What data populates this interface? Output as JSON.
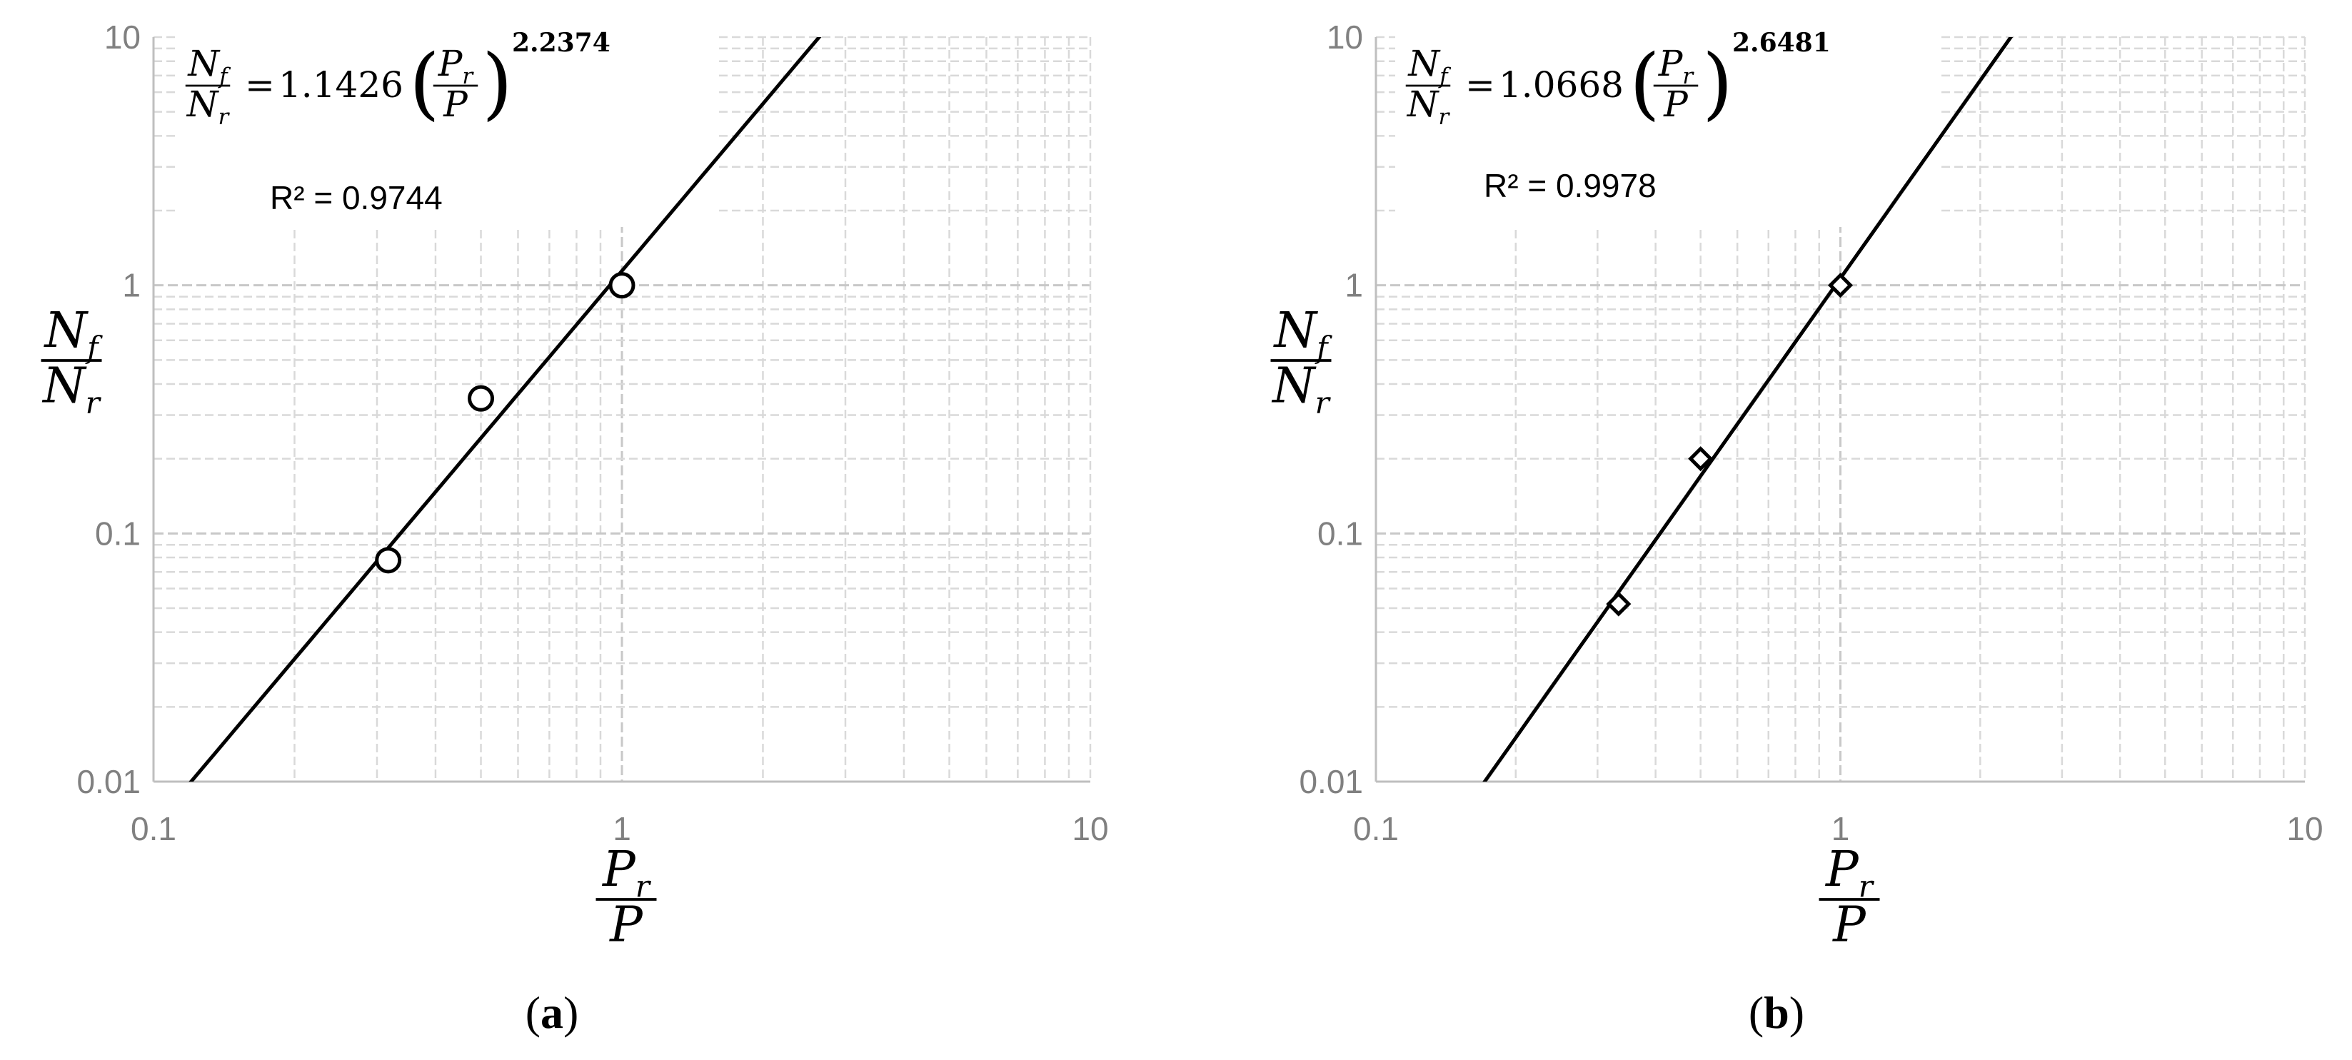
{
  "chart_data": [
    {
      "type": "scatter",
      "panel_caption": "a",
      "xscale": "log",
      "yscale": "log",
      "xlim": [
        0.1,
        10
      ],
      "ylim": [
        0.01,
        10
      ],
      "x_ticks": [
        "0.1",
        "1",
        "10"
      ],
      "y_ticks": [
        "0.01",
        "0.1",
        "1",
        "10"
      ],
      "xlabel": {
        "num": "P",
        "num_sub": "r",
        "den": "P"
      },
      "ylabel": {
        "num": "N",
        "num_sub": "f",
        "den": "N",
        "den_sub": "r"
      },
      "grid": true,
      "marker": "circle",
      "series": [
        {
          "x": [
            0.317,
            0.5,
            1.0
          ],
          "y": [
            0.078,
            0.35,
            1.0
          ]
        }
      ],
      "fit": {
        "coefficient": 1.1426,
        "exponent": 2.2374,
        "coefficient_label": "1.1426",
        "exponent_label": "2.2374"
      },
      "r_squared": "R² = 0.9744"
    },
    {
      "type": "scatter",
      "panel_caption": "b",
      "xscale": "log",
      "yscale": "log",
      "xlim": [
        0.1,
        10
      ],
      "ylim": [
        0.01,
        10
      ],
      "x_ticks": [
        "0.1",
        "1",
        "10"
      ],
      "y_ticks": [
        "0.01",
        "0.1",
        "1",
        "10"
      ],
      "xlabel": {
        "num": "P",
        "num_sub": "r",
        "den": "P"
      },
      "ylabel": {
        "num": "N",
        "num_sub": "f",
        "den": "N",
        "den_sub": "r"
      },
      "grid": true,
      "marker": "diamond",
      "series": [
        {
          "x": [
            0.333,
            0.5,
            1.0
          ],
          "y": [
            0.052,
            0.2,
            1.0
          ]
        }
      ],
      "fit": {
        "coefficient": 1.0668,
        "exponent": 2.6481,
        "coefficient_label": "1.0668",
        "exponent_label": "2.6481"
      },
      "r_squared": "R² = 0.9978"
    }
  ]
}
